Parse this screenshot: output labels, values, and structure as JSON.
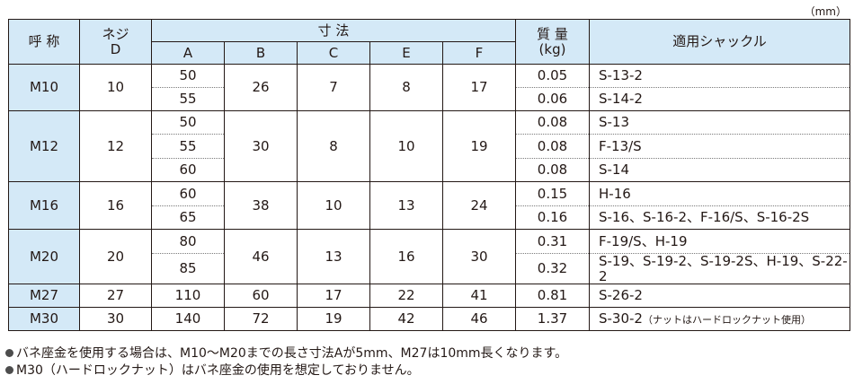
{
  "unit_label": "（mm）",
  "headers": {
    "name": "呼 称",
    "thread": "ネジ",
    "thread_sub": "D",
    "dimensions": "寸 法",
    "dims": [
      "A",
      "B",
      "C",
      "E",
      "F"
    ],
    "mass": "質 量",
    "mass_unit": "(kg)",
    "shackle": "適用シャックル"
  },
  "groups": [
    {
      "name": "M10",
      "d": "10",
      "b": "26",
      "c": "7",
      "e": "8",
      "f": "17",
      "rows": [
        {
          "a": "50",
          "mass": "0.05",
          "shackle": "S-13-2"
        },
        {
          "a": "55",
          "mass": "0.06",
          "shackle": "S-14-2"
        }
      ]
    },
    {
      "name": "M12",
      "d": "12",
      "b": "30",
      "c": "8",
      "e": "10",
      "f": "19",
      "rows": [
        {
          "a": "50",
          "mass": "0.08",
          "shackle": "S-13"
        },
        {
          "a": "55",
          "mass": "0.08",
          "shackle": "F-13/S"
        },
        {
          "a": "60",
          "mass": "0.08",
          "shackle": "S-14"
        }
      ]
    },
    {
      "name": "M16",
      "d": "16",
      "b": "38",
      "c": "10",
      "e": "13",
      "f": "24",
      "rows": [
        {
          "a": "60",
          "mass": "0.15",
          "shackle": "H-16"
        },
        {
          "a": "65",
          "mass": "0.16",
          "shackle": "S-16、S-16-2、F-16/S、S-16-2S"
        }
      ]
    },
    {
      "name": "M20",
      "d": "20",
      "b": "46",
      "c": "13",
      "e": "16",
      "f": "30",
      "rows": [
        {
          "a": "80",
          "mass": "0.31",
          "shackle": "F-19/S、H-19"
        },
        {
          "a": "85",
          "mass": "0.32",
          "shackle": "S-19、S-19-2、S-19-2S、H-19、S-22-2"
        }
      ]
    },
    {
      "name": "M27",
      "d": "27",
      "b": "60",
      "c": "17",
      "e": "22",
      "f": "41",
      "rows": [
        {
          "a": "110",
          "mass": "0.81",
          "shackle": "S-26-2"
        }
      ]
    },
    {
      "name": "M30",
      "d": "30",
      "b": "72",
      "c": "19",
      "e": "42",
      "f": "46",
      "rows": [
        {
          "a": "140",
          "mass": "1.37",
          "shackle": "S-30-2",
          "shackle_note": "（ナットはハードロックナット使用）"
        }
      ]
    }
  ],
  "notes": [
    "バネ座金を使用する場合は、M10～M20までの長さ寸法Aが5mm、M27は10mm長くなります。",
    "M30（ハードロックナット）はバネ座金の使用を想定しておりません。"
  ]
}
